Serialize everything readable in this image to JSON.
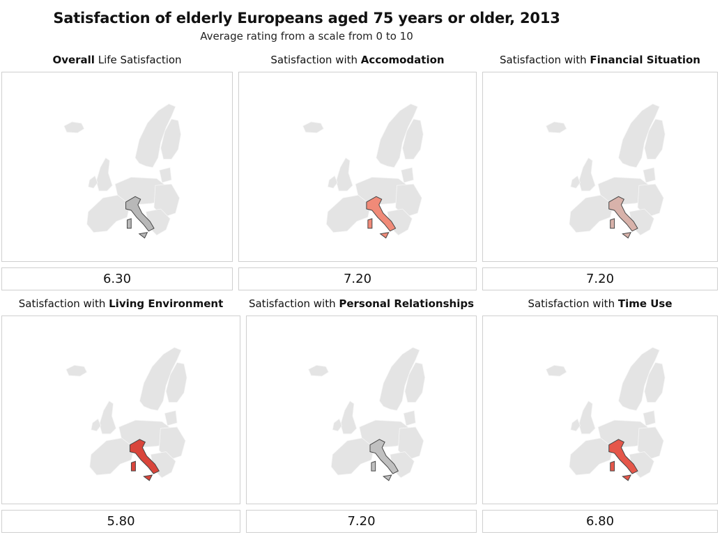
{
  "chart_data": {
    "type": "choropleth",
    "title": "Satisfaction of elderly Europeans aged 75 years or older, 2013",
    "subtitle": "Average rating from a scale from 0 to 10",
    "highlighted_country": "Italy",
    "panels": [
      {
        "label_prefix": "",
        "label_bold": "Overall",
        "label_suffix": " Life Satisfaction",
        "value": "6.30",
        "fill": "#b8b8b8"
      },
      {
        "label_prefix": "Satisfaction with ",
        "label_bold": "Accomodation",
        "label_suffix": "",
        "value": "7.20",
        "fill": "#f08a78"
      },
      {
        "label_prefix": "Satisfaction with ",
        "label_bold": "Financial Situation",
        "label_suffix": "",
        "value": "7.20",
        "fill": "#d8b2aa"
      },
      {
        "label_prefix": "Satisfaction with ",
        "label_bold": "Living Environment",
        "label_suffix": "",
        "value": "5.80",
        "fill": "#d9453b"
      },
      {
        "label_prefix": "Satisfaction with ",
        "label_bold": "Personal Relationships",
        "label_suffix": "",
        "value": "7.20",
        "fill": "#c0c0c0"
      },
      {
        "label_prefix": "Satisfaction with ",
        "label_bold": "Time Use",
        "label_suffix": "",
        "value": "6.80",
        "fill": "#e5574a"
      }
    ]
  }
}
